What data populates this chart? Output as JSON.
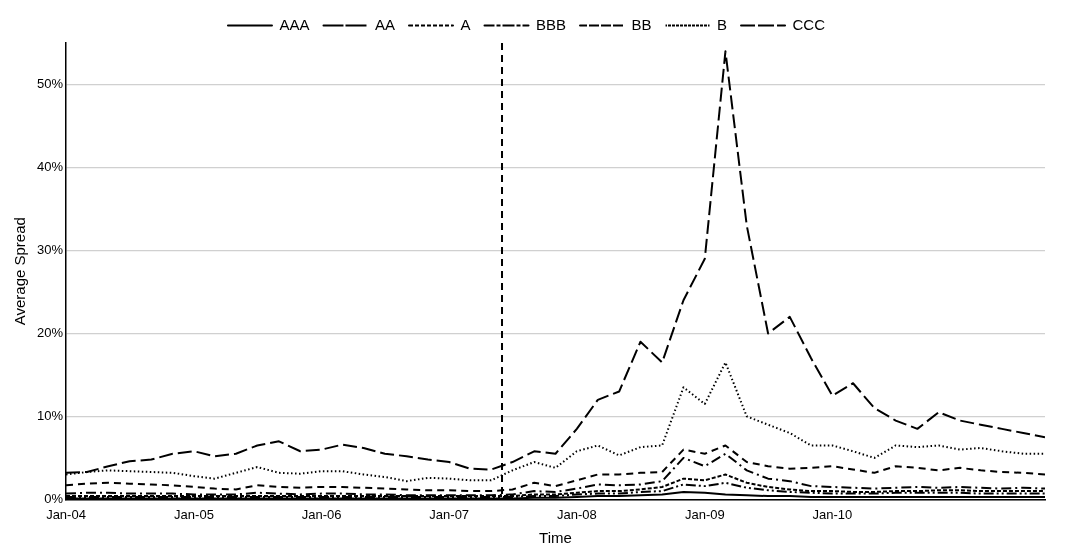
{
  "chart_data": {
    "type": "line",
    "xlabel": "Time",
    "ylabel": "Average Spread",
    "x": [
      "2004-01",
      "2004-03",
      "2004-05",
      "2004-07",
      "2004-09",
      "2004-11",
      "2005-01",
      "2005-03",
      "2005-05",
      "2005-07",
      "2005-09",
      "2005-11",
      "2006-01",
      "2006-03",
      "2006-05",
      "2006-07",
      "2006-09",
      "2006-11",
      "2007-01",
      "2007-03",
      "2007-05",
      "2007-07",
      "2007-09",
      "2007-11",
      "2008-01",
      "2008-03",
      "2008-05",
      "2008-07",
      "2008-09",
      "2008-11",
      "2009-01",
      "2009-03",
      "2009-05",
      "2009-07",
      "2009-09",
      "2009-11",
      "2010-01",
      "2010-03",
      "2010-05",
      "2010-07",
      "2010-09",
      "2010-11",
      "2011-01",
      "2011-03",
      "2011-05",
      "2011-07",
      "2011-09"
    ],
    "xlim": [
      "2004-01",
      "2011-09"
    ],
    "xticks": [
      {
        "value": "2004-01",
        "label": "Jan-04"
      },
      {
        "value": "2005-01",
        "label": "Jan-05"
      },
      {
        "value": "2006-01",
        "label": "Jan-06"
      },
      {
        "value": "2007-01",
        "label": "Jan-07"
      },
      {
        "value": "2008-01",
        "label": "Jan-08"
      },
      {
        "value": "2009-01",
        "label": "Jan-09"
      },
      {
        "value": "2010-01",
        "label": "Jan-10"
      }
    ],
    "ylim": [
      0,
      55
    ],
    "yticks": [
      {
        "value": 0,
        "label": "0%"
      },
      {
        "value": 10,
        "label": "10%"
      },
      {
        "value": 20,
        "label": "20%"
      },
      {
        "value": 30,
        "label": "30%"
      },
      {
        "value": 40,
        "label": "40%"
      },
      {
        "value": 50,
        "label": "50%"
      }
    ],
    "grid": "y",
    "legend": "top",
    "marker": "none",
    "ref_lines": [
      {
        "axis": "x",
        "value": "2007-06",
        "line_style": "dashed",
        "color": "#000000"
      }
    ],
    "series": [
      {
        "name": "AAA",
        "color": "#000000",
        "line_style": "solid",
        "values": [
          0.1,
          0.1,
          0.1,
          0.1,
          0.1,
          0.1,
          0.1,
          0.1,
          0.1,
          0.1,
          0.1,
          0.1,
          0.1,
          0.1,
          0.1,
          0.1,
          0.1,
          0.1,
          0.1,
          0.1,
          0.1,
          0.1,
          0.2,
          0.2,
          0.3,
          0.4,
          0.4,
          0.5,
          0.6,
          0.9,
          0.8,
          0.6,
          0.5,
          0.4,
          0.4,
          0.3,
          0.3,
          0.3,
          0.3,
          0.3,
          0.3,
          0.3,
          0.3,
          0.3,
          0.3,
          0.3,
          0.3
        ]
      },
      {
        "name": "AA",
        "color": "#000000",
        "line_style": "dashdotdot",
        "values": [
          0.3,
          0.3,
          0.3,
          0.3,
          0.3,
          0.3,
          0.3,
          0.3,
          0.3,
          0.3,
          0.3,
          0.3,
          0.3,
          0.3,
          0.3,
          0.3,
          0.3,
          0.3,
          0.3,
          0.3,
          0.3,
          0.3,
          0.4,
          0.4,
          0.6,
          0.7,
          0.7,
          0.9,
          1.0,
          1.8,
          1.6,
          2.0,
          1.4,
          1.1,
          0.9,
          0.8,
          0.7,
          0.7,
          0.7,
          0.8,
          0.8,
          0.8,
          0.8,
          0.7,
          0.7,
          0.7,
          0.7
        ]
      },
      {
        "name": "A",
        "color": "#000000",
        "line_style": "shortdash",
        "values": [
          0.4,
          0.4,
          0.4,
          0.4,
          0.4,
          0.4,
          0.4,
          0.4,
          0.4,
          0.4,
          0.4,
          0.4,
          0.4,
          0.4,
          0.4,
          0.4,
          0.4,
          0.4,
          0.4,
          0.4,
          0.4,
          0.4,
          0.6,
          0.6,
          0.8,
          1.0,
          1.0,
          1.2,
          1.5,
          2.5,
          2.3,
          3.0,
          2.0,
          1.5,
          1.2,
          1.0,
          1.0,
          0.9,
          0.9,
          1.0,
          1.0,
          1.1,
          1.1,
          1.0,
          1.0,
          1.0,
          1.0
        ]
      },
      {
        "name": "BBB",
        "color": "#000000",
        "line_style": "dashdot",
        "values": [
          0.7,
          0.8,
          0.8,
          0.7,
          0.7,
          0.7,
          0.6,
          0.6,
          0.6,
          0.8,
          0.7,
          0.6,
          0.7,
          0.7,
          0.6,
          0.6,
          0.5,
          0.5,
          0.5,
          0.5,
          0.5,
          0.6,
          1.0,
          0.9,
          1.3,
          1.8,
          1.7,
          1.8,
          2.2,
          5.0,
          4.0,
          5.5,
          3.5,
          2.5,
          2.2,
          1.6,
          1.5,
          1.4,
          1.3,
          1.4,
          1.5,
          1.4,
          1.5,
          1.4,
          1.3,
          1.4,
          1.3
        ]
      },
      {
        "name": "BB",
        "color": "#000000",
        "line_style": "dashed",
        "values": [
          1.7,
          1.9,
          2.0,
          1.9,
          1.8,
          1.7,
          1.5,
          1.3,
          1.2,
          1.7,
          1.5,
          1.4,
          1.5,
          1.5,
          1.4,
          1.3,
          1.2,
          1.1,
          1.1,
          1.0,
          1.0,
          1.2,
          2.0,
          1.6,
          2.3,
          3.0,
          3.0,
          3.2,
          3.3,
          6.0,
          5.5,
          6.5,
          4.5,
          4.0,
          3.7,
          3.8,
          4.0,
          3.6,
          3.2,
          4.0,
          3.8,
          3.5,
          3.8,
          3.5,
          3.3,
          3.2,
          3.0
        ]
      },
      {
        "name": "B",
        "color": "#000000",
        "line_style": "dotted",
        "values": [
          3.0,
          3.3,
          3.5,
          3.4,
          3.3,
          3.2,
          2.8,
          2.5,
          3.2,
          3.9,
          3.2,
          3.1,
          3.4,
          3.4,
          3.0,
          2.7,
          2.2,
          2.6,
          2.5,
          2.3,
          2.3,
          3.5,
          4.5,
          3.8,
          5.8,
          6.5,
          5.3,
          6.3,
          6.5,
          13.5,
          11.5,
          16.5,
          10,
          9,
          8,
          6.5,
          6.5,
          5.8,
          5.0,
          6.5,
          6.3,
          6.5,
          6.0,
          6.2,
          5.8,
          5.5,
          5.5
        ]
      },
      {
        "name": "CCC",
        "color": "#000000",
        "line_style": "longdash",
        "values": [
          3.2,
          3.3,
          4.0,
          4.6,
          4.8,
          5.5,
          5.8,
          5.2,
          5.5,
          6.5,
          7.0,
          5.8,
          6.0,
          6.6,
          6.2,
          5.5,
          5.2,
          4.8,
          4.5,
          3.7,
          3.6,
          4.5,
          5.8,
          5.5,
          8.5,
          12,
          13,
          19,
          16.5,
          24,
          29,
          54,
          33,
          20,
          22,
          17,
          12.5,
          14,
          11,
          9.5,
          8.5,
          10.5,
          9.5,
          9,
          8.5,
          8.0,
          7.5
        ]
      }
    ]
  }
}
